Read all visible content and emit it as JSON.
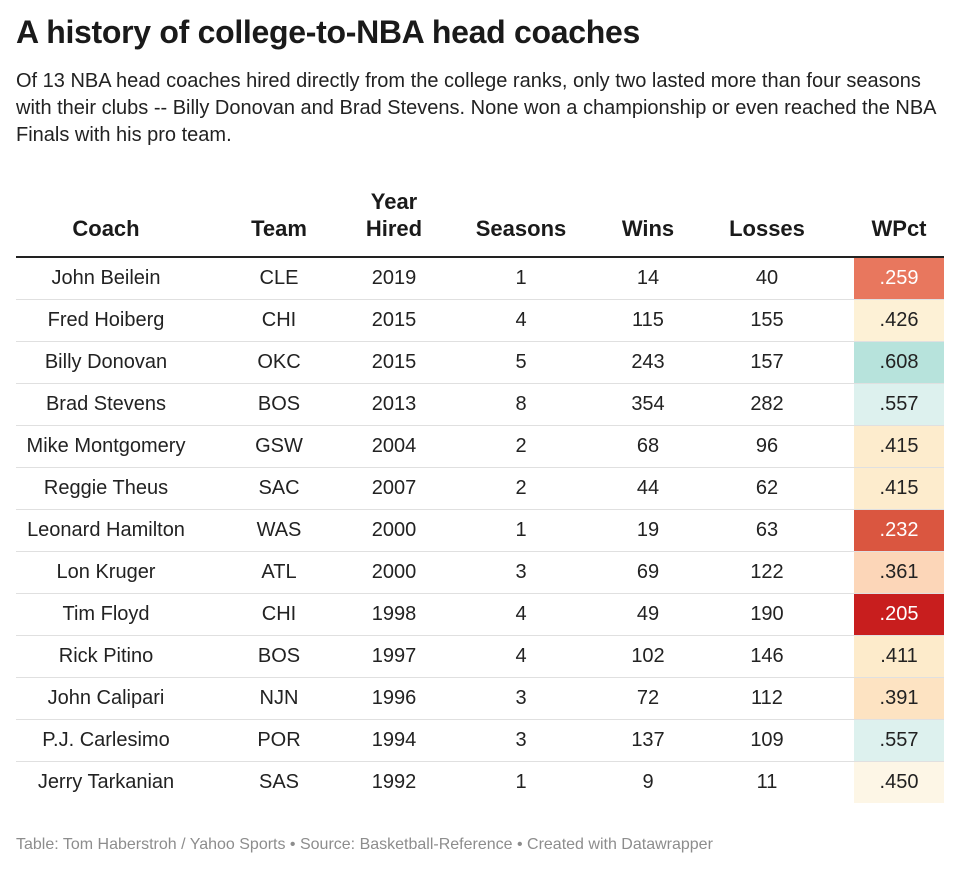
{
  "title": "A history of college-to-NBA head coaches",
  "subtitle": "Of 13 NBA head coaches hired directly from the college ranks, only two lasted more than four seasons with their clubs -- Billy Donovan and Brad Stevens. None won a championship or even reached the NBA Finals with his pro team.",
  "footer": "Table: Tom Haberstroh / Yahoo Sports • Source: Basketball-Reference • Created with Datawrapper",
  "chart_data": {
    "type": "table",
    "columns": [
      "Coach",
      "Team",
      "Year Hired",
      "Seasons",
      "Wins",
      "Losses",
      "WPct"
    ],
    "rows": [
      {
        "coach": "John Beilein",
        "team": "CLE",
        "year": "2019",
        "seasons": "1",
        "wins": "14",
        "losses": "40",
        "wpct": ".259",
        "color": "#e8775e",
        "light_text": true
      },
      {
        "coach": "Fred Hoiberg",
        "team": "CHI",
        "year": "2015",
        "seasons": "4",
        "wins": "115",
        "losses": "155",
        "wpct": ".426",
        "color": "#fdf1d6",
        "light_text": false
      },
      {
        "coach": "Billy Donovan",
        "team": "OKC",
        "year": "2015",
        "seasons": "5",
        "wins": "243",
        "losses": "157",
        "wpct": ".608",
        "color": "#b7e3dc",
        "light_text": false
      },
      {
        "coach": "Brad Stevens",
        "team": "BOS",
        "year": "2013",
        "seasons": "8",
        "wins": "354",
        "losses": "282",
        "wpct": ".557",
        "color": "#ddf1ee",
        "light_text": false
      },
      {
        "coach": "Mike Montgomery",
        "team": "GSW",
        "year": "2004",
        "seasons": "2",
        "wins": "68",
        "losses": "96",
        "wpct": ".415",
        "color": "#fdeccd",
        "light_text": false
      },
      {
        "coach": "Reggie Theus",
        "team": "SAC",
        "year": "2007",
        "seasons": "2",
        "wins": "44",
        "losses": "62",
        "wpct": ".415",
        "color": "#fdeccd",
        "light_text": false
      },
      {
        "coach": "Leonard Hamilton",
        "team": "WAS",
        "year": "2000",
        "seasons": "1",
        "wins": "19",
        "losses": "63",
        "wpct": ".232",
        "color": "#da5640",
        "light_text": true
      },
      {
        "coach": "Lon Kruger",
        "team": "ATL",
        "year": "2000",
        "seasons": "3",
        "wins": "69",
        "losses": "122",
        "wpct": ".361",
        "color": "#fcd6b8",
        "light_text": false
      },
      {
        "coach": "Tim Floyd",
        "team": "CHI",
        "year": "1998",
        "seasons": "4",
        "wins": "49",
        "losses": "190",
        "wpct": ".205",
        "color": "#c81e1e",
        "light_text": true
      },
      {
        "coach": "Rick Pitino",
        "team": "BOS",
        "year": "1997",
        "seasons": "4",
        "wins": "102",
        "losses": "146",
        "wpct": ".411",
        "color": "#fdebcb",
        "light_text": false
      },
      {
        "coach": "John Calipari",
        "team": "NJN",
        "year": "1996",
        "seasons": "3",
        "wins": "72",
        "losses": "112",
        "wpct": ".391",
        "color": "#fde3c2",
        "light_text": false
      },
      {
        "coach": "P.J. Carlesimo",
        "team": "POR",
        "year": "1994",
        "seasons": "3",
        "wins": "137",
        "losses": "109",
        "wpct": ".557",
        "color": "#ddf1ee",
        "light_text": false
      },
      {
        "coach": "Jerry Tarkanian",
        "team": "SAS",
        "year": "1992",
        "seasons": "1",
        "wins": "9",
        "losses": "11",
        "wpct": ".450",
        "color": "#fdf6e6",
        "light_text": false
      }
    ]
  }
}
